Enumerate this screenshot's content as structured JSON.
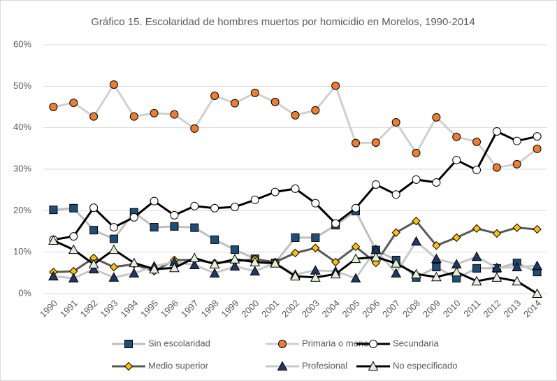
{
  "chart_data": {
    "type": "line",
    "title": "Gráfico 15. Escolaridad de hombres muertos por homicidio en Morelos, 1990-2014",
    "categories": [
      "1990",
      "1991",
      "1992",
      "1993",
      "1994",
      "1995",
      "1996",
      "1997",
      "1998",
      "1999",
      "2000",
      "2001",
      "2002",
      "2003",
      "2004",
      "2005",
      "2006",
      "2007",
      "2008",
      "2009",
      "2010",
      "2011",
      "2012",
      "2013",
      "2014"
    ],
    "ylim": [
      0,
      60
    ],
    "yticks": [
      {
        "value": 0,
        "label": "0%"
      },
      {
        "value": 10,
        "label": "10%"
      },
      {
        "value": 20,
        "label": "20%"
      },
      {
        "value": 30,
        "label": "30%"
      },
      {
        "value": 40,
        "label": "40%"
      },
      {
        "value": 50,
        "label": "50%"
      },
      {
        "value": 60,
        "label": "60%"
      }
    ],
    "grid": true,
    "legend": "bottom",
    "series": [
      {
        "name": "Sin escolaridad",
        "color": "#bfbfbf",
        "marker": "square",
        "marker_color": "#1f4e79",
        "values": [
          20.2,
          20.6,
          15.3,
          13.2,
          19.6,
          16.0,
          16.2,
          15.9,
          13.0,
          10.6,
          8.4,
          7.4,
          13.5,
          13.5,
          16.5,
          19.9,
          10.5,
          8.1,
          3.9,
          6.4,
          3.7,
          6.1,
          6.1,
          7.4,
          5.2
        ]
      },
      {
        "name": "Primaria o menos",
        "color": "#d0d0d0",
        "marker": "circle",
        "marker_color": "#ed7d31",
        "values": [
          45.0,
          46.0,
          42.7,
          50.4,
          42.7,
          43.5,
          43.2,
          39.8,
          47.7,
          45.9,
          48.4,
          46.2,
          43.0,
          44.2,
          50.1,
          36.3,
          36.4,
          41.3,
          33.9,
          42.5,
          37.8,
          36.6,
          30.4,
          31.2,
          34.9
        ]
      },
      {
        "name": "Secundaria",
        "color": "#000000",
        "marker": "circle",
        "marker_color": "#ffffff",
        "values": [
          13.0,
          13.8,
          20.7,
          16.0,
          18.4,
          22.3,
          18.9,
          21.1,
          20.6,
          20.9,
          22.6,
          24.5,
          25.3,
          21.8,
          16.9,
          20.6,
          26.3,
          23.9,
          27.5,
          26.8,
          32.2,
          29.8,
          39.1,
          36.8,
          37.9
        ]
      },
      {
        "name": "Medio superior",
        "color": "#595959",
        "marker": "diamond",
        "marker_color": "#ffc000",
        "values": [
          5.2,
          5.4,
          8.6,
          6.4,
          7.1,
          5.4,
          8.1,
          8.1,
          7.4,
          7.8,
          8.3,
          7.6,
          9.8,
          11.0,
          7.6,
          11.3,
          7.4,
          14.7,
          17.5,
          11.6,
          13.5,
          15.7,
          14.5,
          15.9,
          15.5
        ]
      },
      {
        "name": "Profesional",
        "color": "#c8c8c8",
        "marker": "triangle",
        "marker_color": "#1f3864",
        "values": [
          4.2,
          3.7,
          5.9,
          3.9,
          4.9,
          6.6,
          7.6,
          6.9,
          4.9,
          6.6,
          5.4,
          7.4,
          4.6,
          5.6,
          5.4,
          3.7,
          10.6,
          4.9,
          12.6,
          8.4,
          7.1,
          8.9,
          6.2,
          6.4,
          6.7
        ]
      },
      {
        "name": "No especificado",
        "color": "#000000",
        "marker": "triangle",
        "marker_color": "#e2f0d9",
        "values": [
          12.8,
          10.6,
          7.1,
          10.6,
          7.4,
          5.9,
          6.2,
          8.6,
          7.1,
          8.3,
          7.6,
          7.3,
          4.2,
          3.9,
          4.7,
          8.4,
          8.8,
          7.3,
          4.7,
          4.0,
          5.2,
          3.0,
          3.9,
          3.0,
          0
        ]
      }
    ]
  }
}
